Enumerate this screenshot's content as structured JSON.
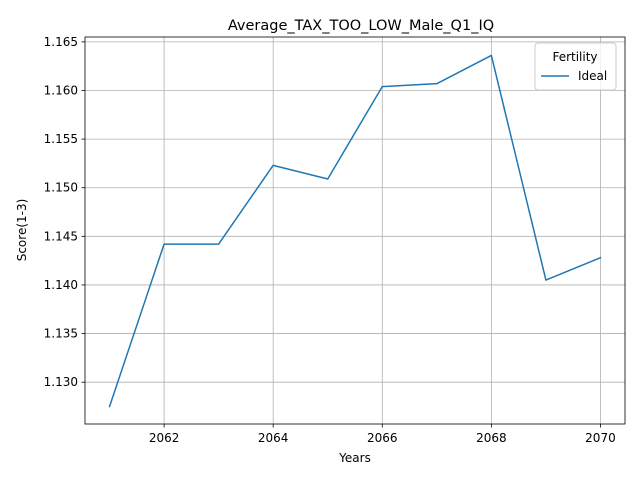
{
  "chart_data": {
    "type": "line",
    "title": "Average_TAX_TOO_LOW_Male_Q1_IQ",
    "xlabel": "Years",
    "ylabel": "Score(1-3)",
    "x": [
      2061,
      2062,
      2063,
      2064,
      2065,
      2066,
      2067,
      2068,
      2069,
      2070
    ],
    "xlim": [
      2060.55,
      2070.45
    ],
    "ylim": [
      1.1257,
      1.1655
    ],
    "xticks": [
      2062,
      2064,
      2066,
      2068,
      2070
    ],
    "yticks": [
      1.13,
      1.135,
      1.14,
      1.145,
      1.15,
      1.155,
      1.16,
      1.165
    ],
    "ytick_labels": [
      "1.130",
      "1.135",
      "1.140",
      "1.145",
      "1.150",
      "1.155",
      "1.160",
      "1.165"
    ],
    "grid": true,
    "legend": {
      "title": "Fertility",
      "placement": "top-right"
    },
    "series": [
      {
        "name": "Ideal",
        "color": "#1f77b4",
        "values": [
          1.1275,
          1.1442,
          1.1442,
          1.1523,
          1.1509,
          1.1604,
          1.1607,
          1.1636,
          1.1405,
          1.1428
        ]
      }
    ]
  }
}
